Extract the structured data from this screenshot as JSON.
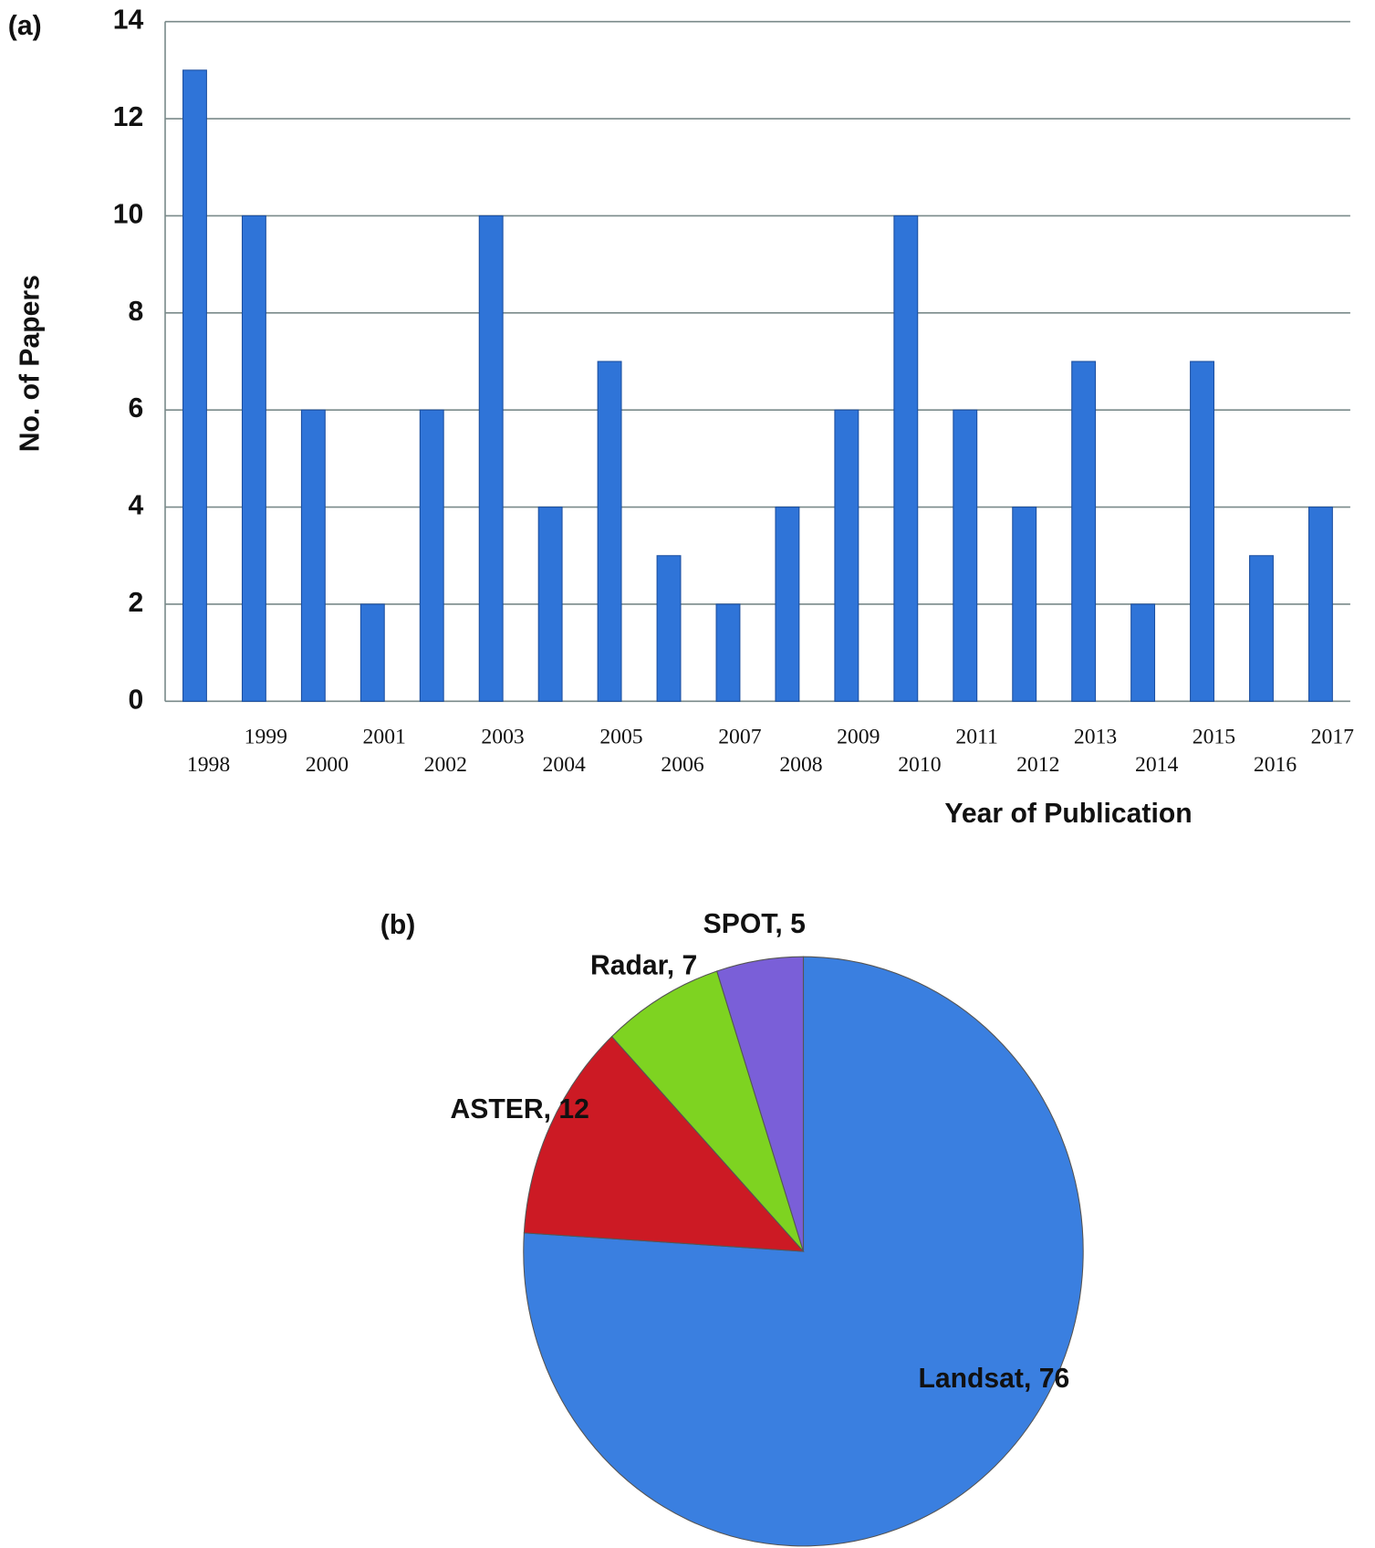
{
  "chart_data": [
    {
      "type": "bar",
      "panel": "(a)",
      "y_label": "No. of Papers",
      "x_label": "Year of Publication",
      "categories": [
        "1998",
        "1999",
        "2000",
        "2001",
        "2002",
        "2003",
        "2004",
        "2005",
        "2006",
        "2007",
        "2008",
        "2009",
        "2010",
        "2011",
        "2012",
        "2013",
        "2014",
        "2015",
        "2016",
        "2017"
      ],
      "values": [
        13,
        10,
        6,
        2,
        6,
        10,
        4,
        7,
        3,
        2,
        4,
        6,
        10,
        6,
        4,
        7,
        2,
        7,
        3,
        4
      ],
      "color": "#2f74d8",
      "ylim": [
        0,
        14
      ],
      "yticks": [
        0,
        2,
        4,
        6,
        8,
        10,
        12,
        14
      ],
      "grid": true
    },
    {
      "type": "pie",
      "panel": "(b)",
      "values": [
        76,
        12,
        7,
        5
      ],
      "value_labels": [
        "Landsat, 76",
        "ASTER, 12",
        "Radar, 7",
        "SPOT, 5"
      ],
      "colors": [
        "#3a7fe0",
        "#cc1a24",
        "#7ed321",
        "#7a5fd8"
      ]
    }
  ]
}
